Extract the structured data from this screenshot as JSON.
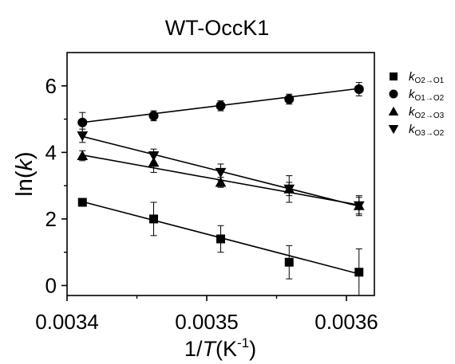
{
  "chart_data": {
    "type": "scatter",
    "title": "WT-OccK1",
    "xlabel": {
      "pre": "1/",
      "italic": "T",
      "unit": "(K",
      "sup": "-1",
      "close": ")"
    },
    "ylabel": {
      "pre": "ln(",
      "italic": "k",
      "post": ")"
    },
    "xlim": [
      0.0034,
      0.00362
    ],
    "ylim": [
      -0.3,
      7.0
    ],
    "xticks": [
      0.0034,
      0.0035,
      0.0036
    ],
    "xtick_labels": [
      "0.0034",
      "0.0035",
      "0.0036"
    ],
    "yticks": [
      0,
      2,
      4,
      6
    ],
    "ytick_labels": [
      "0",
      "2",
      "4",
      "6"
    ],
    "legend_position": "top-right",
    "fit_lines": true,
    "series": [
      {
        "name": "k O2→O1",
        "label_main": "k",
        "label_sub": "O2→O1",
        "marker": "square",
        "x": [
          0.003411,
          0.003462,
          0.00351,
          0.003559,
          0.003609
        ],
        "y": [
          2.5,
          2.0,
          1.4,
          0.7,
          0.4
        ],
        "err": [
          0.05,
          0.5,
          0.4,
          0.5,
          0.7
        ],
        "fit": [
          2.52,
          0.35
        ]
      },
      {
        "name": "k O1→O2",
        "label_main": "k",
        "label_sub": "O1→O2",
        "marker": "circle",
        "x": [
          0.003411,
          0.003462,
          0.00351,
          0.003559,
          0.003609
        ],
        "y": [
          4.9,
          5.1,
          5.4,
          5.6,
          5.9
        ],
        "err": [
          0.3,
          0.15,
          0.15,
          0.15,
          0.2
        ],
        "fit": [
          4.9,
          5.92
        ]
      },
      {
        "name": "k O2→O3",
        "label_main": "k",
        "label_sub": "O2→O3",
        "marker": "triangle-up",
        "x": [
          0.003411,
          0.003462,
          0.00351,
          0.003559,
          0.003609
        ],
        "y": [
          3.9,
          3.7,
          3.1,
          2.9,
          2.4
        ],
        "err": [
          0.15,
          0.3,
          0.15,
          0.2,
          0.25
        ],
        "fit": [
          3.92,
          2.42
        ]
      },
      {
        "name": "k O3→O2",
        "label_main": "k",
        "label_sub": "O3→O2",
        "marker": "triangle-down",
        "x": [
          0.003411,
          0.003462,
          0.00351,
          0.003559,
          0.003609
        ],
        "y": [
          4.5,
          3.9,
          3.4,
          2.9,
          2.4
        ],
        "err": [
          0.2,
          0.2,
          0.25,
          0.4,
          0.3
        ],
        "fit": [
          4.48,
          2.38
        ]
      }
    ]
  }
}
